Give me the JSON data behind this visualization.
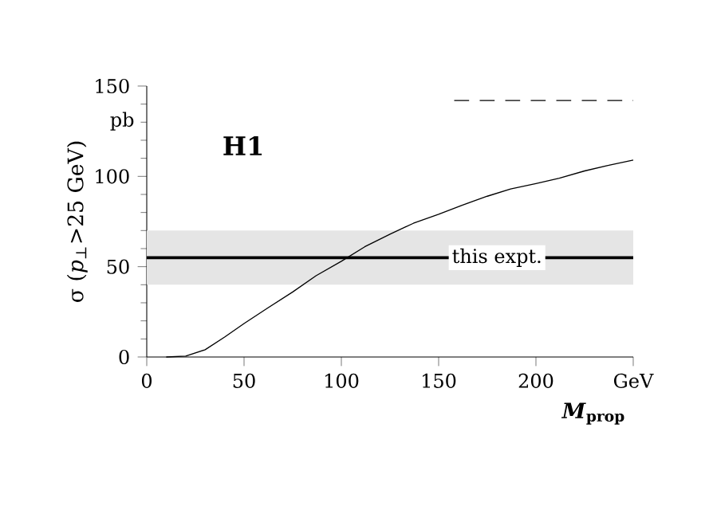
{
  "chart_data": {
    "type": "line",
    "xlabel": "*M*$_{prop}$",
    "ylabel": "σ (*p*$_{⊥}$>25 GeV)",
    "annotations": [
      "H1",
      "pb"
    ],
    "xlim": [
      0,
      250
    ],
    "ylim": [
      0,
      150
    ],
    "xticks": [
      0,
      50,
      100,
      150,
      200,
      {
        "value": 250,
        "label": "GeV"
      }
    ],
    "yticks": [
      0,
      50,
      100,
      150
    ],
    "series": [
      {
        "color": "#000000",
        "x": [
          10,
          20,
          30,
          40,
          50,
          62,
          75,
          87,
          100,
          112,
          125,
          137,
          150,
          162,
          175,
          187,
          200,
          212,
          225,
          237,
          250
        ],
        "values": [
          0,
          0.5,
          4,
          11,
          18.5,
          27,
          36,
          45,
          53,
          61,
          68,
          74,
          79,
          84,
          89,
          93,
          96,
          99,
          103,
          106,
          109
        ]
      },
      {
        "color": "#000000",
        "type": "line",
        "line_style": "dashed",
        "x": [
          158,
          250
        ],
        "values": [
          142,
          142
        ]
      }
    ],
    "ref_lines": [
      {
        "axis": "y",
        "value": 55,
        "label": "this expt."
      }
    ],
    "bands": [
      {
        "axis": "y",
        "from": 40,
        "to": 70,
        "color": "#e5e5e5"
      }
    ]
  }
}
